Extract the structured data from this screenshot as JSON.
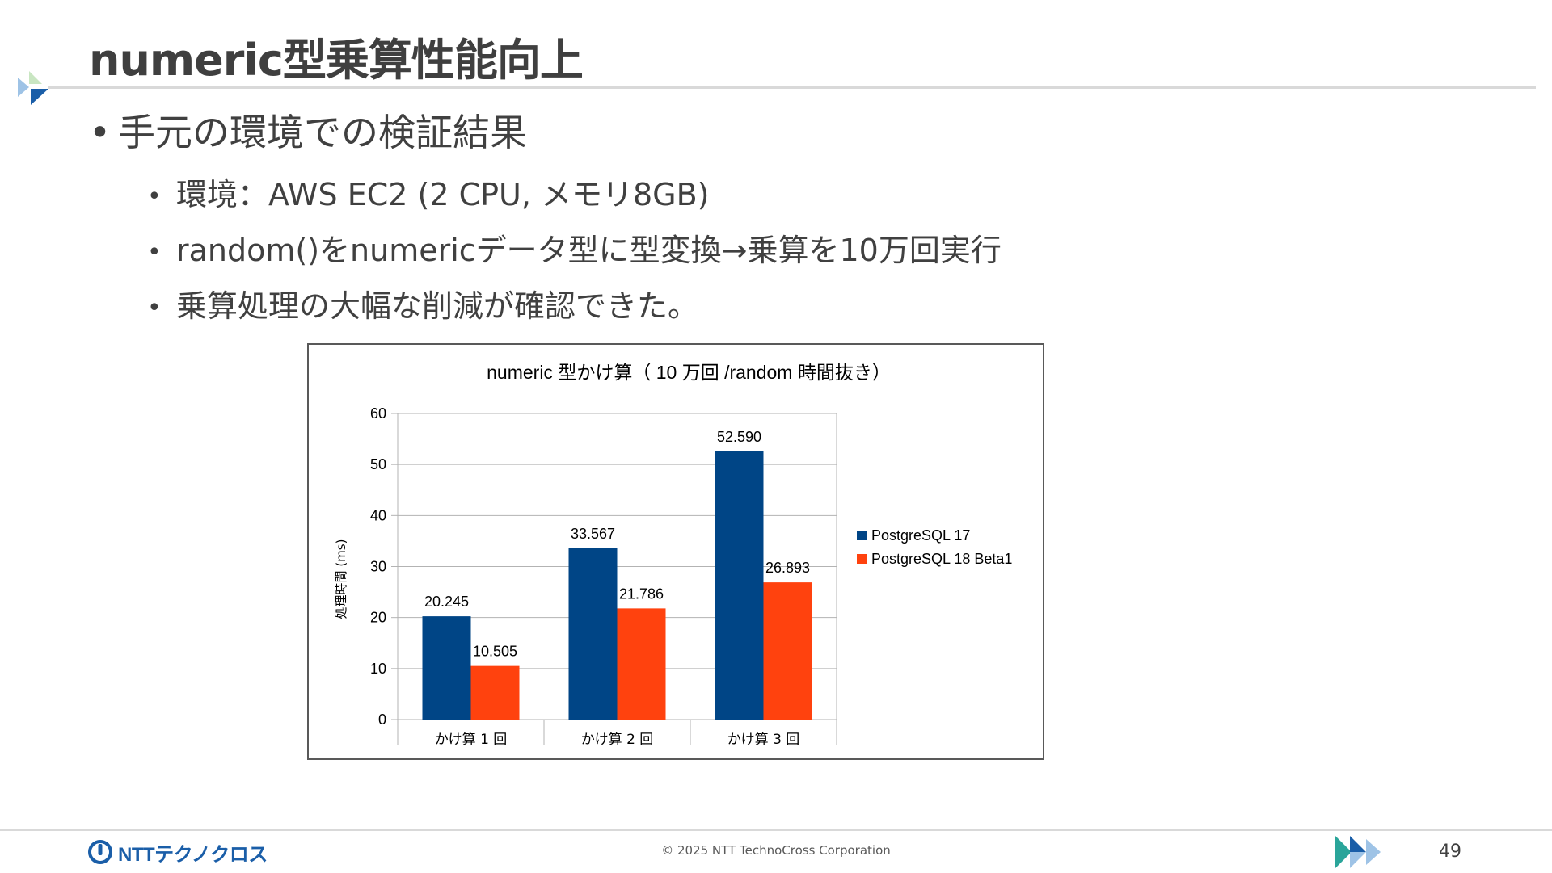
{
  "slide": {
    "title": "numeric型乗算性能向上",
    "bullet_main": "手元の環境での検証結果",
    "bullets_sub": [
      "環境：AWS EC2 (2 CPU, メモリ8GB)",
      "random()をnumericデータ型に型変換→乗算を10万回実行",
      "乗算処理の大幅な削減が確認できた。"
    ],
    "bullet_symbol": "•"
  },
  "chart_data": {
    "type": "bar",
    "title": "numeric 型かけ算（ 10 万回 /random 時間抜き）",
    "categories": [
      "かけ算 1 回",
      "かけ算 2 回",
      "かけ算 3 回"
    ],
    "series": [
      {
        "name": "PostgreSQL 17",
        "values": [
          20.245,
          33.567,
          52.59
        ],
        "labels": [
          "20.245",
          "33.567",
          "52.590"
        ],
        "color": "#004586"
      },
      {
        "name": "PostgreSQL 18 Beta1",
        "values": [
          10.505,
          21.786,
          26.893
        ],
        "labels": [
          "10.505",
          "21.786",
          "26.893"
        ],
        "color": "#ff420e"
      }
    ],
    "xlabel": "",
    "ylabel": "処理時間 (ms)",
    "ylim": [
      0,
      60
    ],
    "yticks": [
      0,
      10,
      20,
      30,
      40,
      50,
      60
    ],
    "grid": true,
    "legend_position": "right"
  },
  "footer": {
    "logo_text": "NTTテクノクロス",
    "copyright": "© 2025 NTT TechnoCross Corporation",
    "page_number": "49"
  },
  "colors": {
    "accent_blue": "#1a5ea8",
    "accent_light": "#9ec3e6",
    "accent_teal": "#2aa59a"
  }
}
